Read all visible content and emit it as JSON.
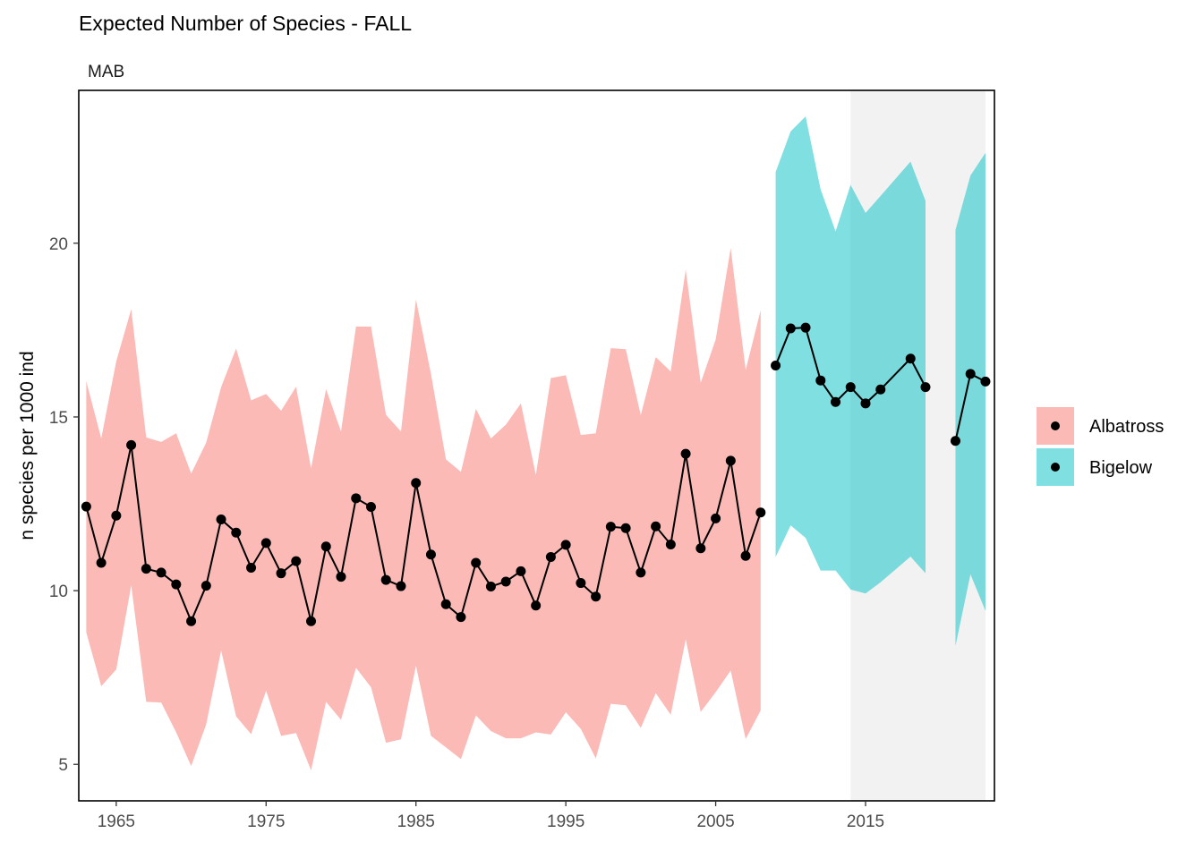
{
  "chart_data": {
    "type": "line",
    "title": "Expected Number of Species - FALL",
    "subtitle": "MAB",
    "xlabel": "",
    "ylabel": "n species per 1000 ind",
    "xlim": [
      1962.5,
      2023.6
    ],
    "ylim": [
      3.95,
      24.4
    ],
    "x_ticks": [
      1965,
      1975,
      1985,
      1995,
      2005,
      2015
    ],
    "y_ticks": [
      5,
      10,
      15,
      20
    ],
    "grid": false,
    "legend_position": "right",
    "shaded_period": {
      "start": 2014,
      "end": 2023,
      "color": "#f2f2f2"
    },
    "series": [
      {
        "name": "Albatross",
        "fill_color": "#f8766d",
        "point_color": "#000000",
        "x": [
          1963,
          1964,
          1965,
          1966,
          1967,
          1968,
          1969,
          1970,
          1971,
          1972,
          1973,
          1974,
          1975,
          1976,
          1977,
          1978,
          1979,
          1980,
          1981,
          1982,
          1983,
          1984,
          1985,
          1986,
          1987,
          1988,
          1989,
          1990,
          1991,
          1992,
          1993,
          1994,
          1995,
          1996,
          1997,
          1998,
          1999,
          2000,
          2001,
          2002,
          2003,
          2004,
          2005,
          2006,
          2007,
          2008
        ],
        "y": [
          12.42,
          10.8,
          12.16,
          14.19,
          10.63,
          10.52,
          10.18,
          9.12,
          10.14,
          12.05,
          11.67,
          10.66,
          11.37,
          10.5,
          10.85,
          9.12,
          11.27,
          10.4,
          12.66,
          12.41,
          10.31,
          10.13,
          13.1,
          11.04,
          9.61,
          9.24,
          10.8,
          10.12,
          10.26,
          10.56,
          9.57,
          10.97,
          11.32,
          10.22,
          9.83,
          11.84,
          11.8,
          10.52,
          11.85,
          11.33,
          13.94,
          11.22,
          12.08,
          13.74,
          11.0,
          12.25
        ],
        "lower": [
          8.8,
          7.25,
          7.73,
          10.15,
          6.8,
          6.78,
          5.92,
          4.95,
          6.15,
          8.28,
          6.38,
          5.87,
          7.12,
          5.82,
          5.9,
          4.83,
          6.8,
          6.28,
          7.78,
          7.22,
          5.62,
          5.72,
          7.84,
          5.82,
          5.49,
          5.15,
          6.41,
          5.96,
          5.75,
          5.75,
          5.92,
          5.86,
          6.5,
          6.02,
          5.17,
          6.74,
          6.7,
          6.05,
          7.05,
          6.43,
          8.6,
          6.51,
          7.08,
          7.7,
          5.73,
          6.55
        ],
        "upper": [
          16.03,
          14.38,
          16.6,
          18.1,
          14.41,
          14.28,
          14.53,
          13.37,
          14.26,
          15.86,
          16.97,
          15.48,
          15.66,
          15.18,
          15.87,
          13.52,
          15.8,
          14.58,
          17.6,
          17.6,
          15.06,
          14.58,
          18.38,
          16.24,
          13.78,
          13.42,
          15.23,
          14.38,
          14.78,
          15.39,
          13.33,
          16.12,
          16.2,
          14.48,
          14.53,
          16.98,
          16.95,
          15.05,
          16.72,
          16.31,
          19.24,
          15.98,
          17.23,
          19.86,
          16.35,
          18.07
        ]
      },
      {
        "name": "Bigelow",
        "fill_color": "#00bfc4",
        "point_color": "#000000",
        "segments": [
          {
            "x": [
              2009,
              2010,
              2011,
              2012,
              2013,
              2014,
              2015,
              2016,
              2018,
              2019
            ],
            "y": [
              16.48,
              17.55,
              17.57,
              16.05,
              15.43,
              15.86,
              15.39,
              15.79,
              16.68,
              15.86
            ],
            "lower": [
              10.97,
              11.88,
              11.52,
              10.58,
              10.58,
              10.03,
              9.92,
              10.24,
              10.98,
              10.5
            ],
            "upper": [
              22.05,
              23.22,
              23.65,
              21.55,
              20.34,
              21.68,
              20.87,
              21.36,
              22.35,
              21.22
            ]
          },
          {
            "x": [
              2021,
              2022,
              2023
            ],
            "y": [
              14.31,
              16.24,
              16.02
            ],
            "lower": [
              8.41,
              10.47,
              9.42
            ],
            "upper": [
              20.38,
              21.95,
              22.6
            ]
          }
        ]
      }
    ]
  }
}
